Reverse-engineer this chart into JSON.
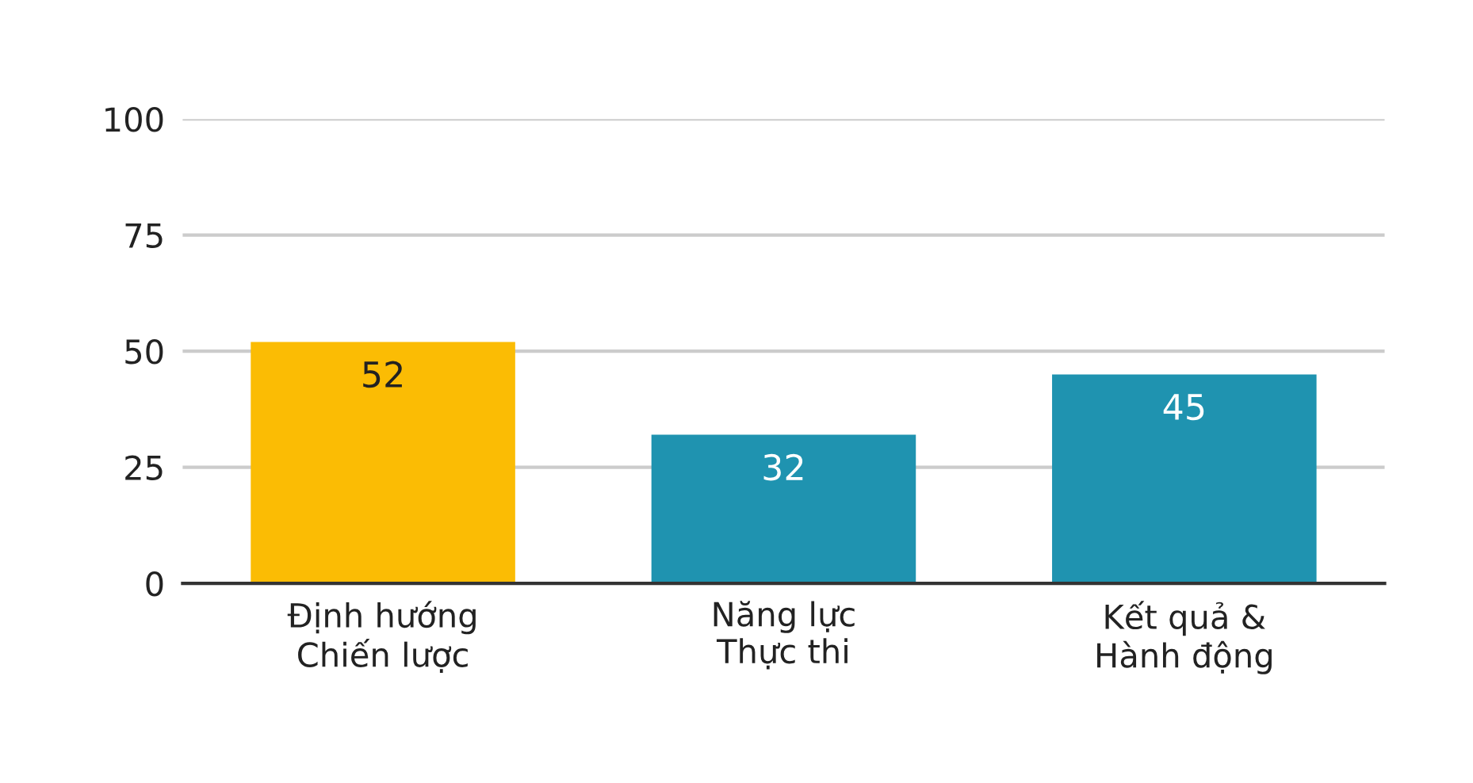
{
  "chart_data": {
    "type": "bar",
    "categories": [
      "Định hướng\nChiến lược",
      "Năng lực\nThực thi",
      "Kết quả &\nHành động"
    ],
    "values": [
      52,
      32,
      45
    ],
    "colors": [
      "#fbbc04",
      "#1f93b0",
      "#1f93b0"
    ],
    "ylim": [
      0,
      100
    ],
    "yticks": [
      0,
      25,
      50,
      75,
      100
    ],
    "grid": "y",
    "data_labels": true
  }
}
